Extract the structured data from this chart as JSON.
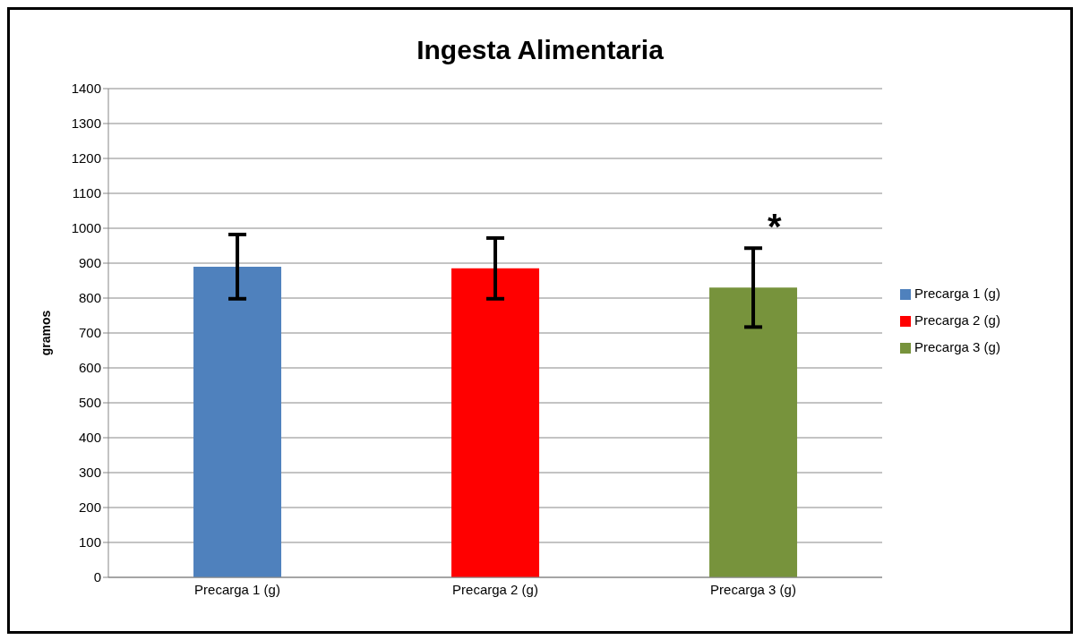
{
  "chart_data": {
    "type": "bar",
    "title": "Ingesta Alimentaria",
    "ylabel": "gramos",
    "categories": [
      "Precarga 1 (g)",
      "Precarga 2 (g)",
      "Precarga 3 (g)"
    ],
    "series": [
      {
        "name": "Precarga 1 (g)",
        "color": "#4f81bd",
        "values": [
          890,
          null,
          null
        ],
        "errors": [
          92,
          null,
          null
        ]
      },
      {
        "name": "Precarga 2 (g)",
        "color": "#ff0000",
        "values": [
          null,
          885,
          null
        ],
        "errors": [
          null,
          87,
          null
        ]
      },
      {
        "name": "Precarga 3 (g)",
        "color": "#77933c",
        "values": [
          null,
          null,
          830
        ],
        "errors": [
          null,
          null,
          113
        ]
      }
    ],
    "ylim": [
      0,
      1400
    ],
    "yticks": [
      0,
      100,
      200,
      300,
      400,
      500,
      600,
      700,
      800,
      900,
      1000,
      1100,
      1200,
      1300,
      1400
    ],
    "grid": "y",
    "legend": "right",
    "annotations": [
      "*"
    ]
  }
}
